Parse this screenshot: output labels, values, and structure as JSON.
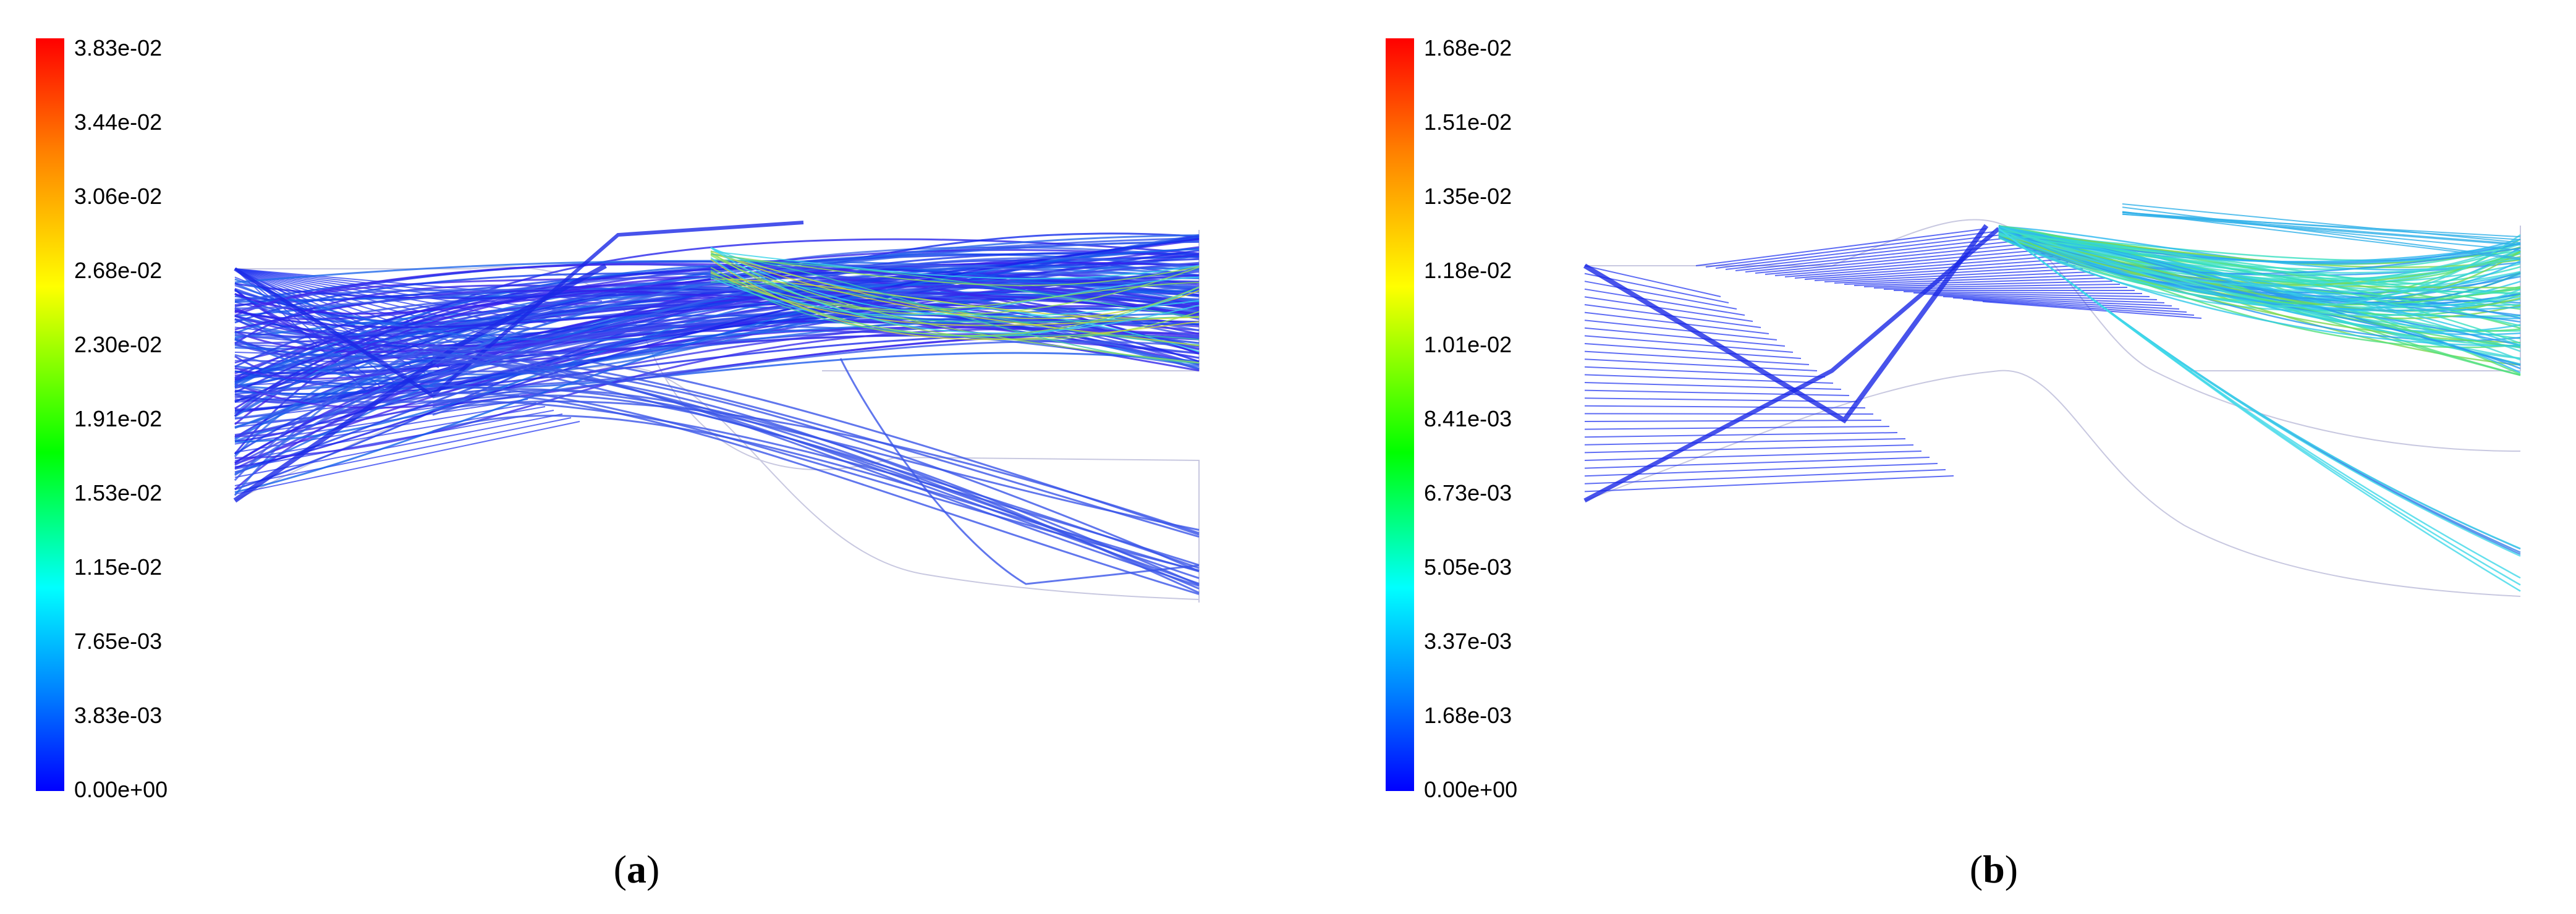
{
  "colors": {
    "min": "#0000ff",
    "mid": "#00ff00",
    "max": "#ff0000",
    "background": "#ffffff"
  },
  "panels": [
    {
      "caption_open": "(",
      "caption_letter": "a",
      "caption_close": ")",
      "colorbar_ticks": [
        "3.83e-02",
        "3.44e-02",
        "3.06e-02",
        "2.68e-02",
        "2.30e-02",
        "1.91e-02",
        "1.53e-02",
        "1.15e-02",
        "7.65e-03",
        "3.83e-03",
        "0.00e+00"
      ]
    },
    {
      "caption_open": "(",
      "caption_letter": "b",
      "caption_close": ")",
      "colorbar_ticks": [
        "1.68e-02",
        "1.51e-02",
        "1.35e-02",
        "1.18e-02",
        "1.01e-02",
        "8.41e-03",
        "6.73e-03",
        "5.05e-03",
        "3.37e-03",
        "1.68e-03",
        "0.00e+00"
      ]
    }
  ]
}
